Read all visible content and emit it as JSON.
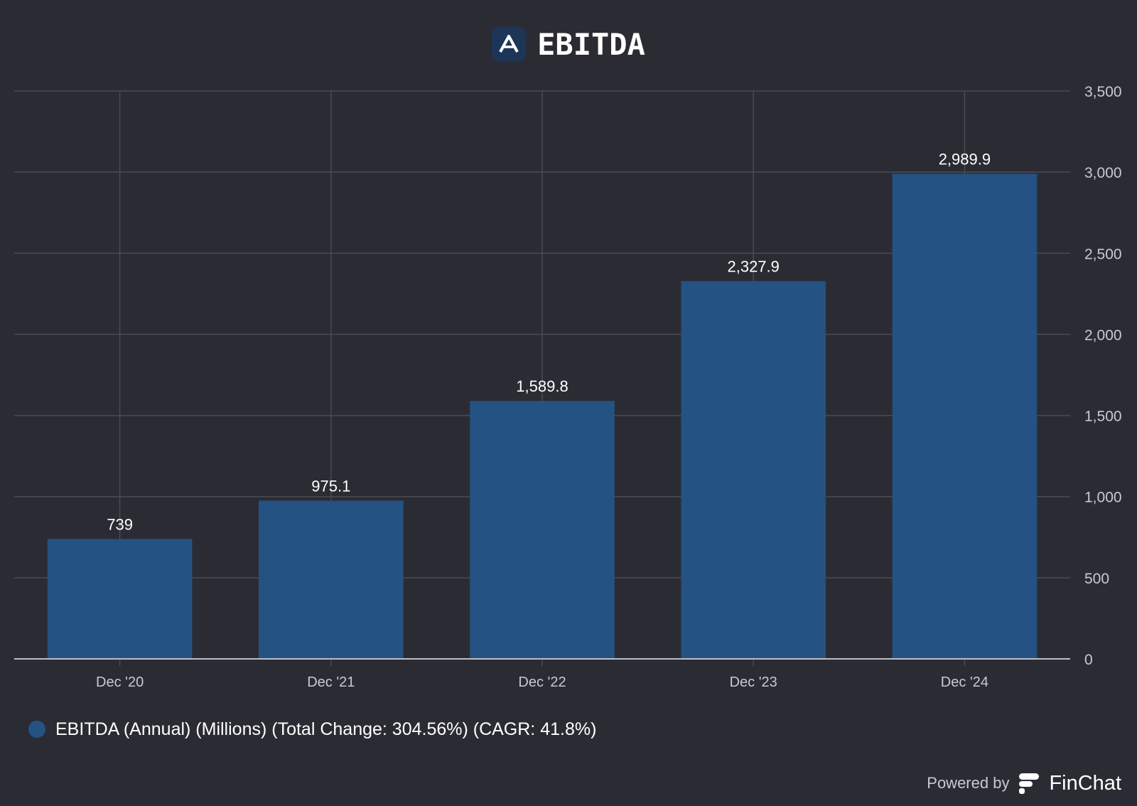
{
  "header": {
    "title": "EBITDA",
    "logo_icon": "arrow-a-logo-icon"
  },
  "chart_data": {
    "type": "bar",
    "title": "EBITDA",
    "categories": [
      "Dec '20",
      "Dec '21",
      "Dec '22",
      "Dec '23",
      "Dec '24"
    ],
    "series": [
      {
        "name": "EBITDA (Annual) (Millions) (Total Change: 304.56%) (CAGR: 41.8%)",
        "values": [
          739,
          975.1,
          1589.8,
          2327.9,
          2989.9
        ],
        "labels": [
          "739",
          "975.1",
          "1,589.8",
          "2,327.9",
          "2,989.9"
        ],
        "color": "#245283"
      }
    ],
    "ylim": [
      0,
      3500
    ],
    "yticks": [
      0,
      500,
      1000,
      1500,
      2000,
      2500,
      3000,
      3500
    ],
    "ytick_labels": [
      "0",
      "500",
      "1,000",
      "1,500",
      "2,000",
      "2,500",
      "3,000",
      "3,500"
    ],
    "y_axis_position": "right",
    "grid": true,
    "legend_position": "bottom-left"
  },
  "footer": {
    "powered_by": "Powered by",
    "brand": "FinChat",
    "brand_icon": "finchat-logo-icon"
  },
  "colors": {
    "background": "#2b2c33",
    "bar": "#245283",
    "grid": "#4a4b52",
    "axis": "#bdbec4",
    "tick_text": "#c9cad0"
  }
}
